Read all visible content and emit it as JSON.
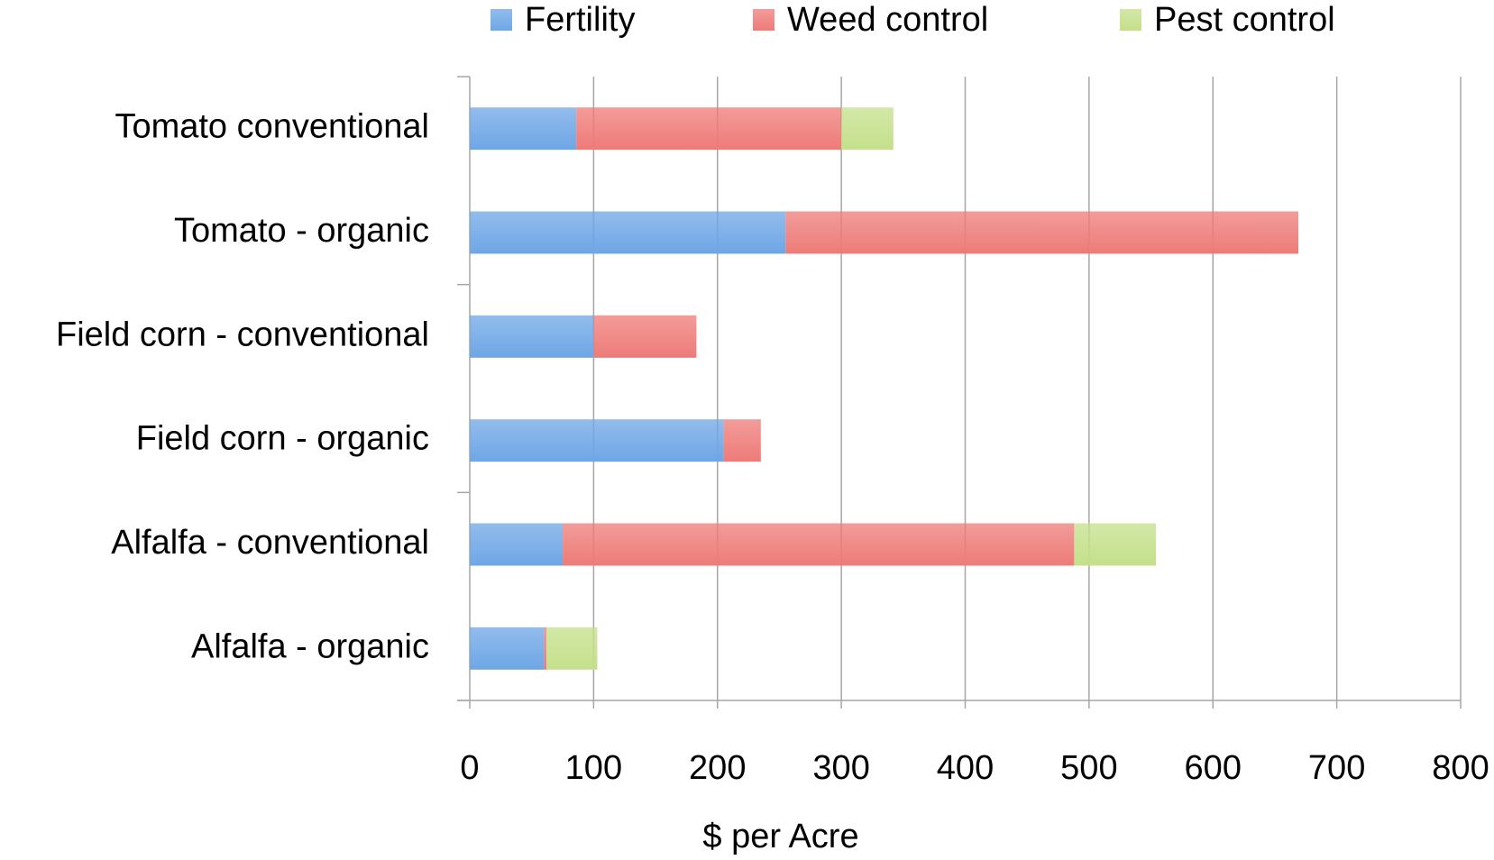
{
  "chart_data": {
    "type": "stacked-barh",
    "categories": [
      "Tomato conventional",
      "Tomato - organic",
      "Field corn - conventional",
      "Field corn - organic",
      "Alfalfa - conventional",
      "Alfalfa - organic"
    ],
    "series": [
      {
        "name": "Fertility",
        "color": "#6ea6e6",
        "values": [
          86,
          255,
          100,
          205,
          75,
          60
        ]
      },
      {
        "name": "Weed control",
        "color": "#ee7b78",
        "values": [
          214,
          414,
          83,
          30,
          413,
          2
        ]
      },
      {
        "name": "Pest control",
        "color": "#c4e08a",
        "values": [
          42,
          0,
          0,
          0,
          66,
          41
        ]
      }
    ],
    "xlabel": "$ per Acre",
    "xlim": [
      0,
      800
    ],
    "xticks": [
      0,
      100,
      200,
      300,
      400,
      500,
      600,
      700,
      800
    ],
    "grid": true,
    "legend": "top"
  }
}
